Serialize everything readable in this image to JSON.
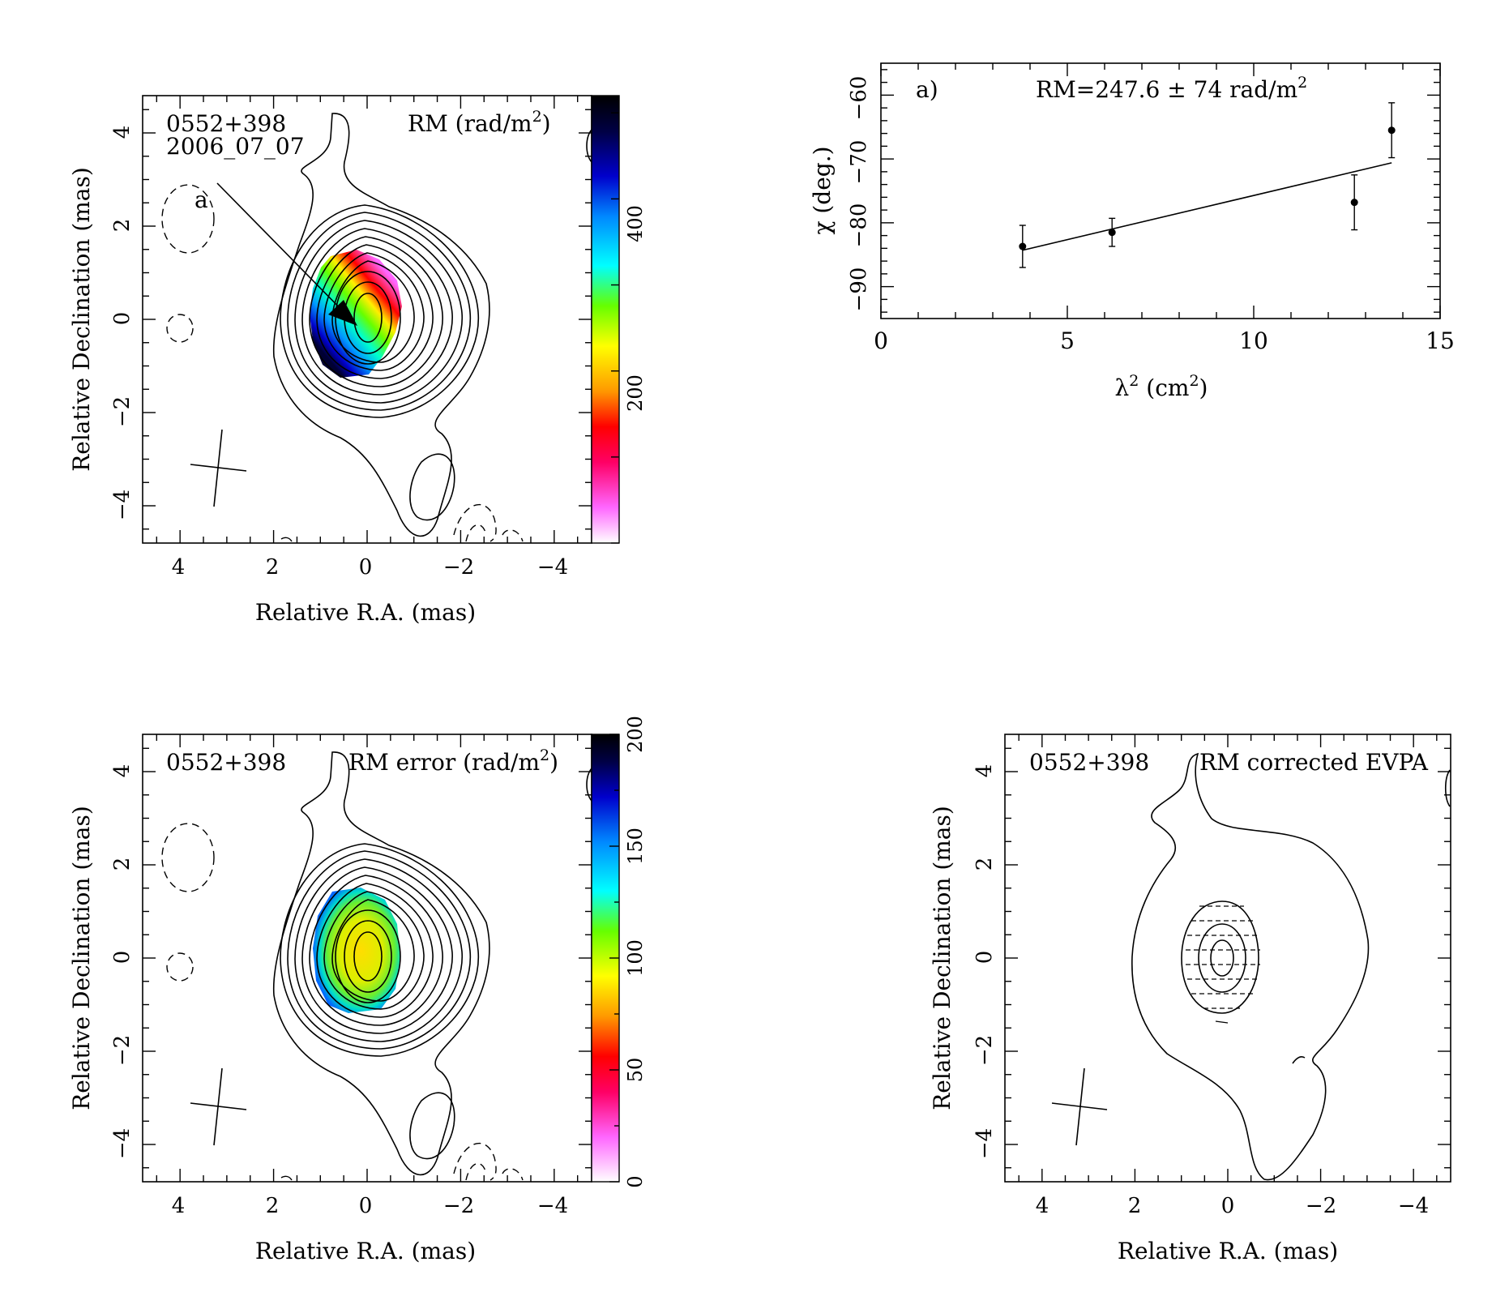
{
  "panels": {
    "rm": {
      "source": "0552+398",
      "epoch": "2006_07_07",
      "title": "RM (rad/m",
      "title_sup": "2",
      "title_close": ")",
      "marker": "a",
      "xlabel": "Relative R.A. (mas)",
      "ylabel": "Relative Declination (mas)",
      "xticks": [
        "4",
        "2",
        "0",
        "−2",
        "−4"
      ],
      "yticks": [
        "4",
        "2",
        "0",
        "−2",
        "−4"
      ],
      "colorbar_ticks": [
        "200",
        "400"
      ]
    },
    "fit": {
      "label": "a)",
      "rm_text": "RM=247.6 ± 74 rad/m",
      "rm_sup": "2",
      "ylabel": "χ (deg.)",
      "xlabel_main": "λ",
      "xlabel_sup1": "2",
      "xlabel_mid": " (cm",
      "xlabel_sup2": "2",
      "xlabel_close": ")",
      "xticks": [
        "0",
        "5",
        "10",
        "15"
      ],
      "yticks": [
        "−60",
        "−70",
        "−80",
        "−90"
      ]
    },
    "rm_error": {
      "source": "0552+398",
      "title": "RM error (rad/m",
      "title_sup": "2",
      "title_close": ")",
      "xlabel": "Relative R.A. (mas)",
      "ylabel": "Relative Declination (mas)",
      "xticks": [
        "4",
        "2",
        "0",
        "−2",
        "−4"
      ],
      "yticks": [
        "4",
        "2",
        "0",
        "−2",
        "−4"
      ],
      "colorbar_ticks": [
        "0",
        "50",
        "100",
        "150",
        "200"
      ]
    },
    "evpa": {
      "source": "0552+398",
      "title": "RM corrected EVPA",
      "xlabel": "Relative R.A. (mas)",
      "ylabel": "Relative Declination (mas)",
      "xticks": [
        "4",
        "2",
        "0",
        "−2",
        "−4"
      ],
      "yticks": [
        "4",
        "2",
        "0",
        "−2",
        "−4"
      ]
    }
  },
  "chart_data": [
    {
      "type": "heatmap",
      "title": "RM (rad/m2)",
      "xlabel": "Relative R.A. (mas)",
      "ylabel": "Relative Declination (mas)",
      "xlim": [
        4.8,
        -4.8
      ],
      "ylim": [
        -4.8,
        4.8
      ],
      "colorbar_range": [
        0,
        520
      ],
      "colorbar_ticks": [
        200,
        400
      ],
      "colormap": [
        "#ffffff",
        "#ff00ff",
        "#ff0000",
        "#ff9900",
        "#ffff00",
        "#00ff00",
        "#00ffff",
        "#0000ff",
        "#000044",
        "#000000"
      ]
    },
    {
      "type": "scatter",
      "title": "RM=247.6 ± 74 rad/m2",
      "xlabel": "λ2 (cm2)",
      "ylabel": "χ (deg.)",
      "xlim": [
        0,
        15
      ],
      "ylim": [
        -95,
        -55
      ],
      "points": [
        {
          "x": 3.8,
          "y": -83.7,
          "err": 3.3
        },
        {
          "x": 6.2,
          "y": -81.5,
          "err": 2.2
        },
        {
          "x": 12.7,
          "y": -76.8,
          "err": 4.3
        },
        {
          "x": 13.7,
          "y": -65.5,
          "err": 4.3
        }
      ],
      "fit_line": {
        "x": [
          3.8,
          13.7
        ],
        "y": [
          -84.3,
          -70.6
        ]
      },
      "rm": 247.6,
      "rm_err": 74
    },
    {
      "type": "heatmap",
      "title": "RM error (rad/m2)",
      "xlabel": "Relative R.A. (mas)",
      "ylabel": "Relative Declination (mas)",
      "xlim": [
        4.8,
        -4.8
      ],
      "ylim": [
        -4.8,
        4.8
      ],
      "colorbar_range": [
        0,
        200
      ],
      "colorbar_ticks": [
        0,
        50,
        100,
        150,
        200
      ]
    },
    {
      "type": "line",
      "title": "RM corrected EVPA",
      "xlabel": "Relative R.A. (mas)",
      "ylabel": "Relative Declination (mas)",
      "xlim": [
        4.8,
        -4.8
      ],
      "ylim": [
        -4.8,
        4.8
      ]
    }
  ]
}
